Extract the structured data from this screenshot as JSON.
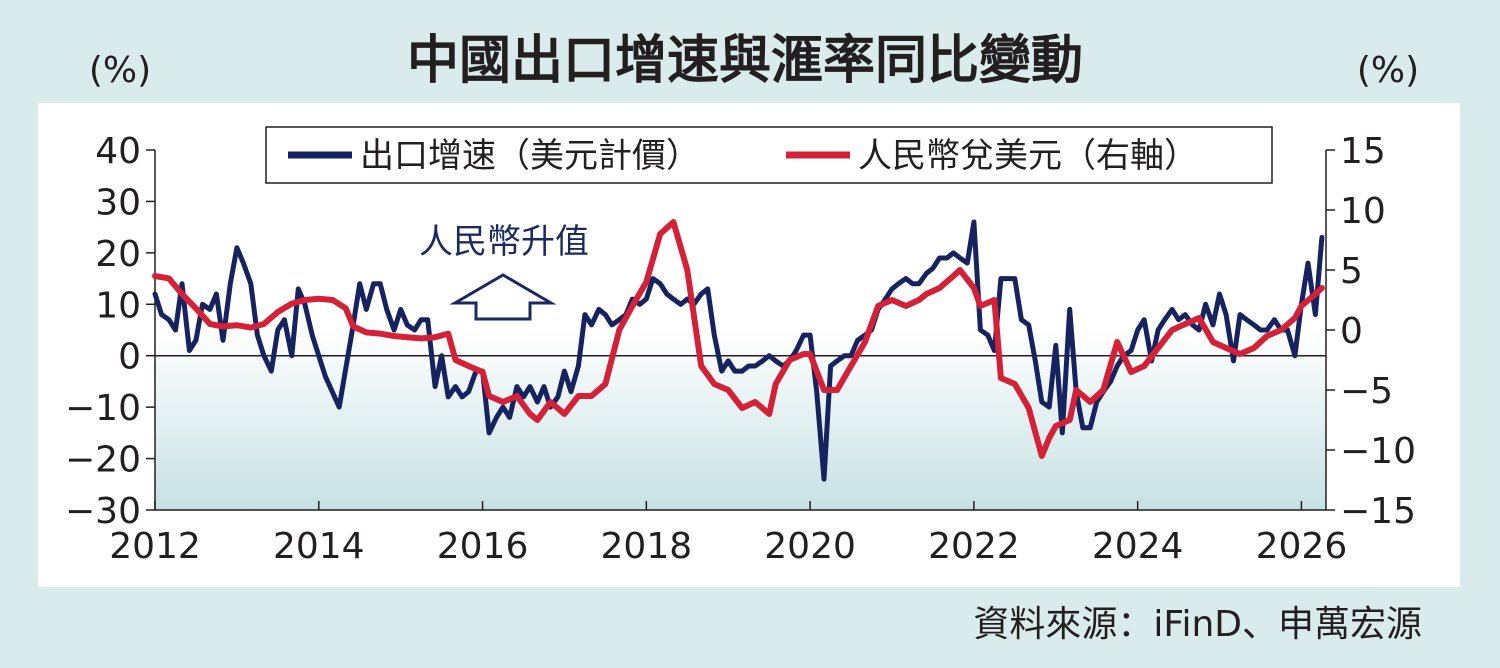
{
  "chart_data": {
    "type": "line",
    "title": "中國出口增速與滙率同比變動",
    "y_unit_left": "(%)",
    "y_unit_right": "(%)",
    "x_ticks": [
      "2012",
      "2014",
      "2016",
      "2018",
      "2020",
      "2022",
      "2024",
      "2026"
    ],
    "y_left_ticks": [
      "40",
      "30",
      "20",
      "10",
      "0",
      "−10",
      "−20",
      "−30"
    ],
    "y_right_ticks": [
      "15",
      "10",
      "5",
      "0",
      "−5",
      "−10",
      "−15"
    ],
    "ylim_left": [
      -30,
      40
    ],
    "ylim_right": [
      -15,
      15
    ],
    "xlim": [
      2012,
      2026.3
    ],
    "legend_position": "top",
    "series": [
      {
        "name": "出口增速（美元計價）",
        "axis": "left",
        "color": "#16235e",
        "points": [
          [
            2012.0,
            12
          ],
          [
            2012.08,
            8
          ],
          [
            2012.17,
            7
          ],
          [
            2012.25,
            5
          ],
          [
            2012.33,
            14
          ],
          [
            2012.42,
            1
          ],
          [
            2012.5,
            3
          ],
          [
            2012.58,
            10
          ],
          [
            2012.67,
            9
          ],
          [
            2012.75,
            12
          ],
          [
            2012.83,
            3
          ],
          [
            2012.92,
            14
          ],
          [
            2013.0,
            21
          ],
          [
            2013.08,
            18
          ],
          [
            2013.17,
            14
          ],
          [
            2013.25,
            4
          ],
          [
            2013.33,
            0
          ],
          [
            2013.42,
            -3
          ],
          [
            2013.5,
            5
          ],
          [
            2013.58,
            7
          ],
          [
            2013.67,
            0
          ],
          [
            2013.75,
            13
          ],
          [
            2013.83,
            10
          ],
          [
            2013.92,
            4
          ],
          [
            2014.08,
            -4
          ],
          [
            2014.25,
            -10
          ],
          [
            2014.42,
            6
          ],
          [
            2014.5,
            14
          ],
          [
            2014.58,
            9
          ],
          [
            2014.67,
            14
          ],
          [
            2014.75,
            14
          ],
          [
            2014.83,
            9
          ],
          [
            2014.92,
            5
          ],
          [
            2015.0,
            9
          ],
          [
            2015.08,
            6
          ],
          [
            2015.17,
            5
          ],
          [
            2015.25,
            7
          ],
          [
            2015.33,
            7
          ],
          [
            2015.42,
            -6
          ],
          [
            2015.5,
            0
          ],
          [
            2015.58,
            -8
          ],
          [
            2015.67,
            -6
          ],
          [
            2015.75,
            -8
          ],
          [
            2015.83,
            -7
          ],
          [
            2015.92,
            -3
          ],
          [
            2016.0,
            -3
          ],
          [
            2016.08,
            -15
          ],
          [
            2016.17,
            -12
          ],
          [
            2016.25,
            -10
          ],
          [
            2016.33,
            -12
          ],
          [
            2016.42,
            -6
          ],
          [
            2016.5,
            -8
          ],
          [
            2016.58,
            -6
          ],
          [
            2016.67,
            -9
          ],
          [
            2016.75,
            -6
          ],
          [
            2016.83,
            -10
          ],
          [
            2016.92,
            -8
          ],
          [
            2017.0,
            -3
          ],
          [
            2017.08,
            -7
          ],
          [
            2017.17,
            -2
          ],
          [
            2017.25,
            8
          ],
          [
            2017.33,
            6
          ],
          [
            2017.42,
            9
          ],
          [
            2017.5,
            8
          ],
          [
            2017.58,
            6
          ],
          [
            2017.67,
            7
          ],
          [
            2017.75,
            8
          ],
          [
            2017.83,
            11
          ],
          [
            2017.92,
            10
          ],
          [
            2018.0,
            11
          ],
          [
            2018.08,
            15
          ],
          [
            2018.17,
            14
          ],
          [
            2018.25,
            12
          ],
          [
            2018.33,
            11
          ],
          [
            2018.42,
            10
          ],
          [
            2018.5,
            11
          ],
          [
            2018.58,
            10
          ],
          [
            2018.67,
            12
          ],
          [
            2018.75,
            13
          ],
          [
            2018.83,
            4
          ],
          [
            2018.92,
            -3
          ],
          [
            2019.0,
            -1
          ],
          [
            2019.08,
            -3
          ],
          [
            2019.17,
            -3
          ],
          [
            2019.25,
            -2
          ],
          [
            2019.33,
            -2
          ],
          [
            2019.42,
            -1
          ],
          [
            2019.5,
            0
          ],
          [
            2019.58,
            -1
          ],
          [
            2019.67,
            -2
          ],
          [
            2019.75,
            -1
          ],
          [
            2019.83,
            1
          ],
          [
            2019.92,
            4
          ],
          [
            2020.0,
            4
          ],
          [
            2020.08,
            -7
          ],
          [
            2020.17,
            -24
          ],
          [
            2020.25,
            -2
          ],
          [
            2020.33,
            -1
          ],
          [
            2020.42,
            0
          ],
          [
            2020.5,
            0
          ],
          [
            2020.58,
            3
          ],
          [
            2020.67,
            4
          ],
          [
            2020.75,
            5
          ],
          [
            2020.83,
            9
          ],
          [
            2020.92,
            11
          ],
          [
            2021.0,
            13
          ],
          [
            2021.08,
            14
          ],
          [
            2021.17,
            15
          ],
          [
            2021.25,
            14
          ],
          [
            2021.33,
            14
          ],
          [
            2021.42,
            16
          ],
          [
            2021.5,
            17
          ],
          [
            2021.58,
            19
          ],
          [
            2021.67,
            19
          ],
          [
            2021.75,
            20
          ],
          [
            2021.83,
            19
          ],
          [
            2021.92,
            18
          ],
          [
            2022.0,
            26
          ],
          [
            2022.08,
            5
          ],
          [
            2022.17,
            4
          ],
          [
            2022.25,
            1
          ],
          [
            2022.33,
            15
          ],
          [
            2022.42,
            15
          ],
          [
            2022.5,
            15
          ],
          [
            2022.58,
            7
          ],
          [
            2022.67,
            6
          ],
          [
            2022.75,
            -1
          ],
          [
            2022.83,
            -9
          ],
          [
            2022.92,
            -10
          ],
          [
            2023.0,
            2
          ],
          [
            2023.08,
            -15
          ],
          [
            2023.17,
            9
          ],
          [
            2023.25,
            -7
          ],
          [
            2023.33,
            -14
          ],
          [
            2023.42,
            -14
          ],
          [
            2023.5,
            -9
          ],
          [
            2023.58,
            -7
          ],
          [
            2023.67,
            -5
          ],
          [
            2023.75,
            -2
          ],
          [
            2023.83,
            0
          ],
          [
            2023.92,
            1
          ],
          [
            2024.0,
            5
          ],
          [
            2024.08,
            7
          ],
          [
            2024.17,
            -1
          ],
          [
            2024.25,
            5
          ],
          [
            2024.33,
            7
          ],
          [
            2024.42,
            9
          ],
          [
            2024.5,
            7
          ],
          [
            2024.58,
            8
          ],
          [
            2024.67,
            6
          ],
          [
            2024.75,
            5
          ],
          [
            2024.83,
            10
          ],
          [
            2024.92,
            6
          ],
          [
            2025.0,
            12
          ],
          [
            2025.08,
            8
          ],
          [
            2025.17,
            -1
          ],
          [
            2025.25,
            8
          ],
          [
            2025.33,
            7
          ],
          [
            2025.42,
            6
          ],
          [
            2025.5,
            5
          ],
          [
            2025.58,
            5
          ],
          [
            2025.67,
            7
          ],
          [
            2025.75,
            5
          ],
          [
            2025.83,
            5
          ],
          [
            2025.92,
            0
          ],
          [
            2026.0,
            10
          ],
          [
            2026.08,
            18
          ],
          [
            2026.17,
            8
          ],
          [
            2026.25,
            23
          ]
        ]
      },
      {
        "name": "人民幣兌美元（右軸）",
        "axis": "right",
        "color": "#d32138",
        "points": [
          [
            2012.0,
            4.5
          ],
          [
            2012.17,
            4.3
          ],
          [
            2012.33,
            3.0
          ],
          [
            2012.5,
            1.8
          ],
          [
            2012.67,
            0.5
          ],
          [
            2012.83,
            0.3
          ],
          [
            2013.0,
            0.4
          ],
          [
            2013.17,
            0.2
          ],
          [
            2013.33,
            0.5
          ],
          [
            2013.5,
            1.5
          ],
          [
            2013.67,
            2.2
          ],
          [
            2013.83,
            2.5
          ],
          [
            2014.0,
            2.6
          ],
          [
            2014.17,
            2.5
          ],
          [
            2014.33,
            1.8
          ],
          [
            2014.42,
            0.3
          ],
          [
            2014.58,
            -0.2
          ],
          [
            2014.75,
            -0.3
          ],
          [
            2014.92,
            -0.5
          ],
          [
            2015.08,
            -0.6
          ],
          [
            2015.25,
            -0.7
          ],
          [
            2015.42,
            -0.6
          ],
          [
            2015.58,
            -0.3
          ],
          [
            2015.67,
            -2.5
          ],
          [
            2015.83,
            -3.0
          ],
          [
            2016.0,
            -3.5
          ],
          [
            2016.08,
            -5.5
          ],
          [
            2016.25,
            -6.0
          ],
          [
            2016.42,
            -5.5
          ],
          [
            2016.58,
            -7.0
          ],
          [
            2016.67,
            -7.5
          ],
          [
            2016.83,
            -6.0
          ],
          [
            2017.0,
            -7.0
          ],
          [
            2017.17,
            -5.5
          ],
          [
            2017.33,
            -5.5
          ],
          [
            2017.5,
            -4.5
          ],
          [
            2017.67,
            0.0
          ],
          [
            2017.83,
            2.0
          ],
          [
            2018.0,
            4.0
          ],
          [
            2018.17,
            8.0
          ],
          [
            2018.33,
            9.0
          ],
          [
            2018.5,
            5.0
          ],
          [
            2018.67,
            -3.0
          ],
          [
            2018.83,
            -4.5
          ],
          [
            2019.0,
            -5.0
          ],
          [
            2019.17,
            -6.5
          ],
          [
            2019.33,
            -6.0
          ],
          [
            2019.5,
            -7.0
          ],
          [
            2019.58,
            -4.5
          ],
          [
            2019.75,
            -2.5
          ],
          [
            2019.92,
            -2.0
          ],
          [
            2020.0,
            -2.0
          ],
          [
            2020.17,
            -5.0
          ],
          [
            2020.33,
            -5.0
          ],
          [
            2020.5,
            -3.0
          ],
          [
            2020.67,
            -1.0
          ],
          [
            2020.83,
            2.0
          ],
          [
            2021.0,
            2.5
          ],
          [
            2021.17,
            2.0
          ],
          [
            2021.33,
            2.5
          ],
          [
            2021.42,
            3.0
          ],
          [
            2021.58,
            3.5
          ],
          [
            2021.75,
            4.5
          ],
          [
            2021.83,
            5.0
          ],
          [
            2022.0,
            3.5
          ],
          [
            2022.08,
            2.0
          ],
          [
            2022.25,
            2.5
          ],
          [
            2022.33,
            -4.0
          ],
          [
            2022.5,
            -4.5
          ],
          [
            2022.67,
            -6.5
          ],
          [
            2022.83,
            -10.5
          ],
          [
            2022.92,
            -9.0
          ],
          [
            2023.0,
            -8.0
          ],
          [
            2023.17,
            -7.5
          ],
          [
            2023.25,
            -5.0
          ],
          [
            2023.42,
            -6.0
          ],
          [
            2023.58,
            -5.0
          ],
          [
            2023.75,
            -1.0
          ],
          [
            2023.92,
            -3.5
          ],
          [
            2024.08,
            -3.0
          ],
          [
            2024.25,
            -1.5
          ],
          [
            2024.42,
            0.0
          ],
          [
            2024.58,
            0.5
          ],
          [
            2024.75,
            1.0
          ],
          [
            2024.92,
            -1.0
          ],
          [
            2025.08,
            -1.5
          ],
          [
            2025.25,
            -2.0
          ],
          [
            2025.42,
            -1.5
          ],
          [
            2025.58,
            -0.5
          ],
          [
            2025.75,
            0.0
          ],
          [
            2025.92,
            1.0
          ],
          [
            2026.0,
            2.0
          ],
          [
            2026.17,
            3.0
          ],
          [
            2026.25,
            3.5
          ]
        ]
      }
    ],
    "annotation": "人民幣升值",
    "annotation_x": 2016.1,
    "annotation_y": 10,
    "source": "資料來源：iFinD、申萬宏源"
  }
}
